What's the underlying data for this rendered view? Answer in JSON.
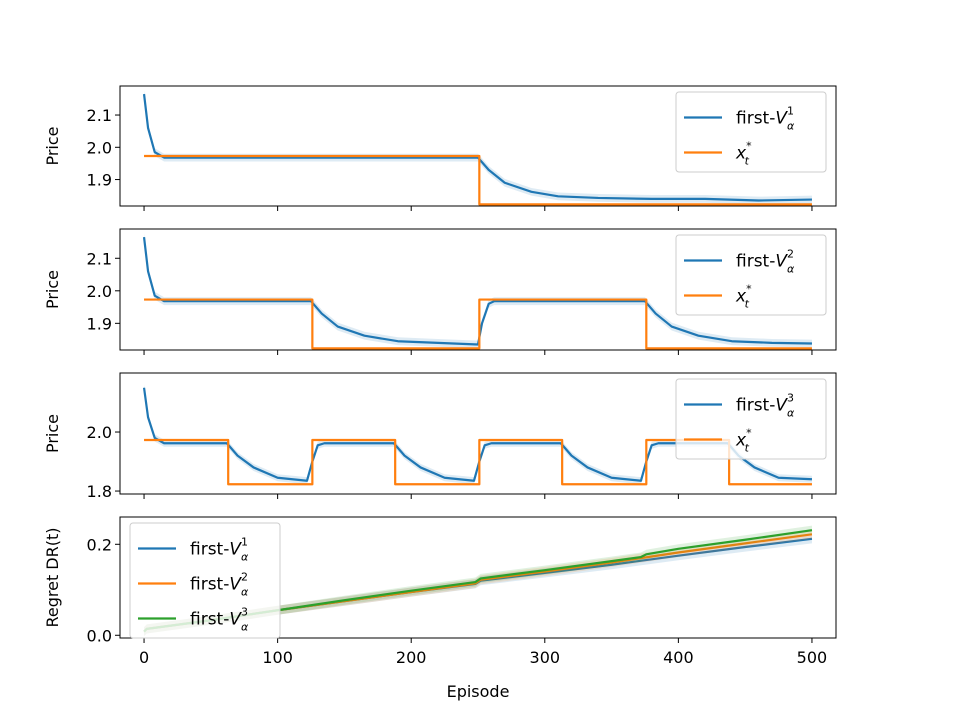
{
  "chart_data": [
    {
      "type": "line",
      "ylabel": "Price",
      "xlim": [
        -18,
        518
      ],
      "ylim": [
        1.818,
        2.19
      ],
      "yticks": [
        1.9,
        2.0,
        2.1
      ],
      "ytick_labels": [
        "1.9",
        "2.0",
        "2.1"
      ],
      "legend_position": "top-right",
      "series": [
        {
          "name": "first-V_α^1",
          "label_main": "first-",
          "label_var": "V",
          "label_sub": "α",
          "label_sup": "1",
          "color": "#1f77b4",
          "x": [
            0,
            3,
            8,
            15,
            250,
            258,
            270,
            290,
            310,
            340,
            380,
            420,
            460,
            500
          ],
          "y": [
            2.165,
            2.06,
            1.985,
            1.968,
            1.968,
            1.93,
            1.89,
            1.862,
            1.848,
            1.843,
            1.84,
            1.84,
            1.835,
            1.838
          ]
        },
        {
          "name": "x_t^*",
          "label_var": "x",
          "label_sub": "t",
          "label_sup": "*",
          "color": "#ff7f0e",
          "x": [
            0,
            251,
            251,
            500
          ],
          "y": [
            1.973,
            1.973,
            1.823,
            1.823
          ]
        }
      ]
    },
    {
      "type": "line",
      "ylabel": "Price",
      "xlim": [
        -18,
        518
      ],
      "ylim": [
        1.818,
        2.19
      ],
      "yticks": [
        1.9,
        2.0,
        2.1
      ],
      "ytick_labels": [
        "1.9",
        "2.0",
        "2.1"
      ],
      "legend_position": "top-right",
      "series": [
        {
          "name": "first-V_α^2",
          "label_main": "first-",
          "label_var": "V",
          "label_sub": "α",
          "label_sup": "2",
          "color": "#1f77b4",
          "x": [
            0,
            3,
            8,
            15,
            125,
            133,
            145,
            165,
            190,
            220,
            250,
            253,
            258,
            262,
            375,
            383,
            395,
            415,
            440,
            470,
            500
          ],
          "y": [
            2.165,
            2.06,
            1.985,
            1.968,
            1.968,
            1.93,
            1.89,
            1.862,
            1.845,
            1.84,
            1.835,
            1.9,
            1.96,
            1.968,
            1.968,
            1.93,
            1.89,
            1.862,
            1.845,
            1.84,
            1.838
          ]
        },
        {
          "name": "x_t^*",
          "label_var": "x",
          "label_sub": "t",
          "label_sup": "*",
          "color": "#ff7f0e",
          "x": [
            0,
            126,
            126,
            251,
            251,
            376,
            376,
            500
          ],
          "y": [
            1.973,
            1.973,
            1.823,
            1.823,
            1.973,
            1.973,
            1.823,
            1.823
          ]
        }
      ]
    },
    {
      "type": "line",
      "ylabel": "Price",
      "xlim": [
        -18,
        518
      ],
      "ylim": [
        1.79,
        2.2
      ],
      "yticks": [
        1.8,
        2.0
      ],
      "ytick_labels": [
        "1.8",
        "2.0"
      ],
      "legend_position": "top-right",
      "series": [
        {
          "name": "first-V_α^3",
          "label_main": "first-",
          "label_var": "V",
          "label_sub": "α",
          "label_sup": "3",
          "color": "#1f77b4",
          "x": [
            0,
            3,
            8,
            15,
            62,
            70,
            82,
            100,
            122,
            126,
            130,
            135,
            187,
            195,
            207,
            225,
            247,
            251,
            255,
            260,
            312,
            320,
            332,
            350,
            372,
            376,
            380,
            385,
            437,
            445,
            457,
            475,
            500
          ],
          "y": [
            2.15,
            2.05,
            1.98,
            1.962,
            1.962,
            1.92,
            1.88,
            1.845,
            1.835,
            1.9,
            1.955,
            1.962,
            1.962,
            1.92,
            1.88,
            1.845,
            1.835,
            1.9,
            1.955,
            1.962,
            1.962,
            1.92,
            1.88,
            1.845,
            1.835,
            1.9,
            1.955,
            1.962,
            1.962,
            1.92,
            1.88,
            1.845,
            1.84
          ]
        },
        {
          "name": "x_t^*",
          "label_var": "x",
          "label_sub": "t",
          "label_sup": "*",
          "color": "#ff7f0e",
          "x": [
            0,
            63,
            63,
            126,
            126,
            188,
            188,
            251,
            251,
            313,
            313,
            376,
            376,
            438,
            438,
            500
          ],
          "y": [
            1.973,
            1.973,
            1.823,
            1.823,
            1.973,
            1.973,
            1.823,
            1.823,
            1.973,
            1.973,
            1.823,
            1.823,
            1.973,
            1.973,
            1.823,
            1.823
          ]
        }
      ]
    },
    {
      "type": "line",
      "ylabel": "Regret DR(t)",
      "xlabel": "Episode",
      "xlim": [
        -18,
        518
      ],
      "ylim": [
        -0.006,
        0.26
      ],
      "yticks": [
        0.0,
        0.2
      ],
      "ytick_labels": [
        "0.0",
        "0.2"
      ],
      "xticks": [
        0,
        100,
        200,
        300,
        400,
        500
      ],
      "xtick_labels": [
        "0",
        "100",
        "200",
        "300",
        "400",
        "500"
      ],
      "legend_position": "top-left",
      "series": [
        {
          "name": "first-V_α^1",
          "label_main": "first-",
          "label_var": "V",
          "label_sub": "α",
          "label_sup": "1",
          "color": "#1f77b4",
          "x": [
            0,
            2,
            50,
            100,
            150,
            200,
            248,
            252,
            300,
            350,
            400,
            450,
            500
          ],
          "y": [
            0.008,
            0.014,
            0.033,
            0.055,
            0.075,
            0.095,
            0.113,
            0.12,
            0.137,
            0.155,
            0.175,
            0.194,
            0.212
          ]
        },
        {
          "name": "first-V_α^2",
          "label_main": "first-",
          "label_var": "V",
          "label_sub": "α",
          "label_sup": "2",
          "color": "#ff7f0e",
          "x": [
            0,
            2,
            50,
            100,
            150,
            200,
            248,
            252,
            300,
            350,
            400,
            450,
            500
          ],
          "y": [
            0.008,
            0.014,
            0.033,
            0.055,
            0.075,
            0.095,
            0.114,
            0.122,
            0.14,
            0.16,
            0.182,
            0.202,
            0.222
          ]
        },
        {
          "name": "first-V_α^3",
          "label_main": "first-",
          "label_var": "V",
          "label_sub": "α",
          "label_sup": "3",
          "color": "#2ca02c",
          "x": [
            0,
            2,
            50,
            100,
            150,
            200,
            248,
            252,
            300,
            350,
            372,
            376,
            400,
            450,
            500
          ],
          "y": [
            0.008,
            0.014,
            0.033,
            0.055,
            0.077,
            0.098,
            0.117,
            0.125,
            0.143,
            0.163,
            0.172,
            0.178,
            0.19,
            0.21,
            0.231
          ]
        }
      ]
    }
  ]
}
